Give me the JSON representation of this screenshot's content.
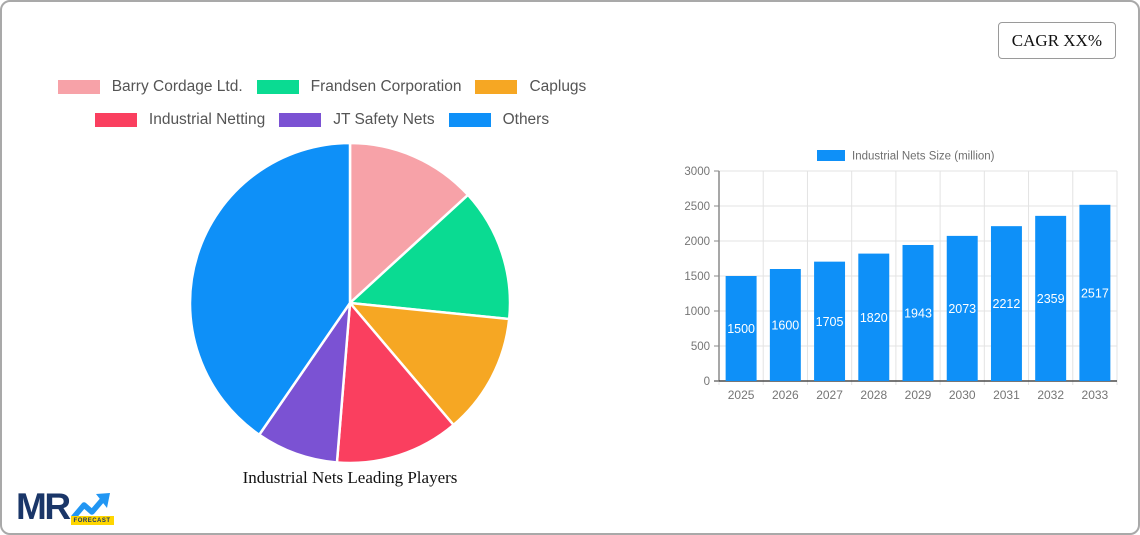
{
  "cagr": {
    "label": "CAGR XX%"
  },
  "logo": {
    "mr": "MR",
    "forecast": "FORECAST"
  },
  "chart_data": [
    {
      "type": "pie",
      "title": "Industrial Nets Leading Players",
      "labels": [
        "Barry Cordage Ltd.",
        "Frandsen Corporation",
        "Caplugs",
        "Industrial Netting",
        "JT Safety Nets",
        "Others"
      ],
      "values": [
        13.2,
        13.4,
        12.2,
        12.5,
        8.3,
        40.4
      ],
      "colors": [
        "#F7A2A8",
        "#0ADB92",
        "#F6A723",
        "#FA3F5F",
        "#7B52D3",
        "#0E90F8"
      ],
      "start_angle_deg": 0,
      "legend_position": "top",
      "legend_rows": [
        3,
        3
      ],
      "slice_gap_color": "#ffffff"
    },
    {
      "type": "bar",
      "legend": "Industrial Nets Size (million)",
      "categories": [
        "2025",
        "2026",
        "2027",
        "2028",
        "2029",
        "2030",
        "2031",
        "2032",
        "2033"
      ],
      "values": [
        1500,
        1600,
        1705,
        1820,
        1943,
        2073,
        2212,
        2359,
        2517
      ],
      "bar_color": "#0E90F8",
      "value_label_color": "#ffffff",
      "value_label_position": "inside-center",
      "ylim": [
        0,
        3000
      ],
      "ytick_step": 500,
      "yticks": [
        0,
        500,
        1000,
        1500,
        2000,
        2500,
        3000
      ],
      "grid": true,
      "grid_color": "#e3e3e3",
      "axis_color": "#8a8a8a",
      "tick_label_color": "#757575"
    }
  ]
}
